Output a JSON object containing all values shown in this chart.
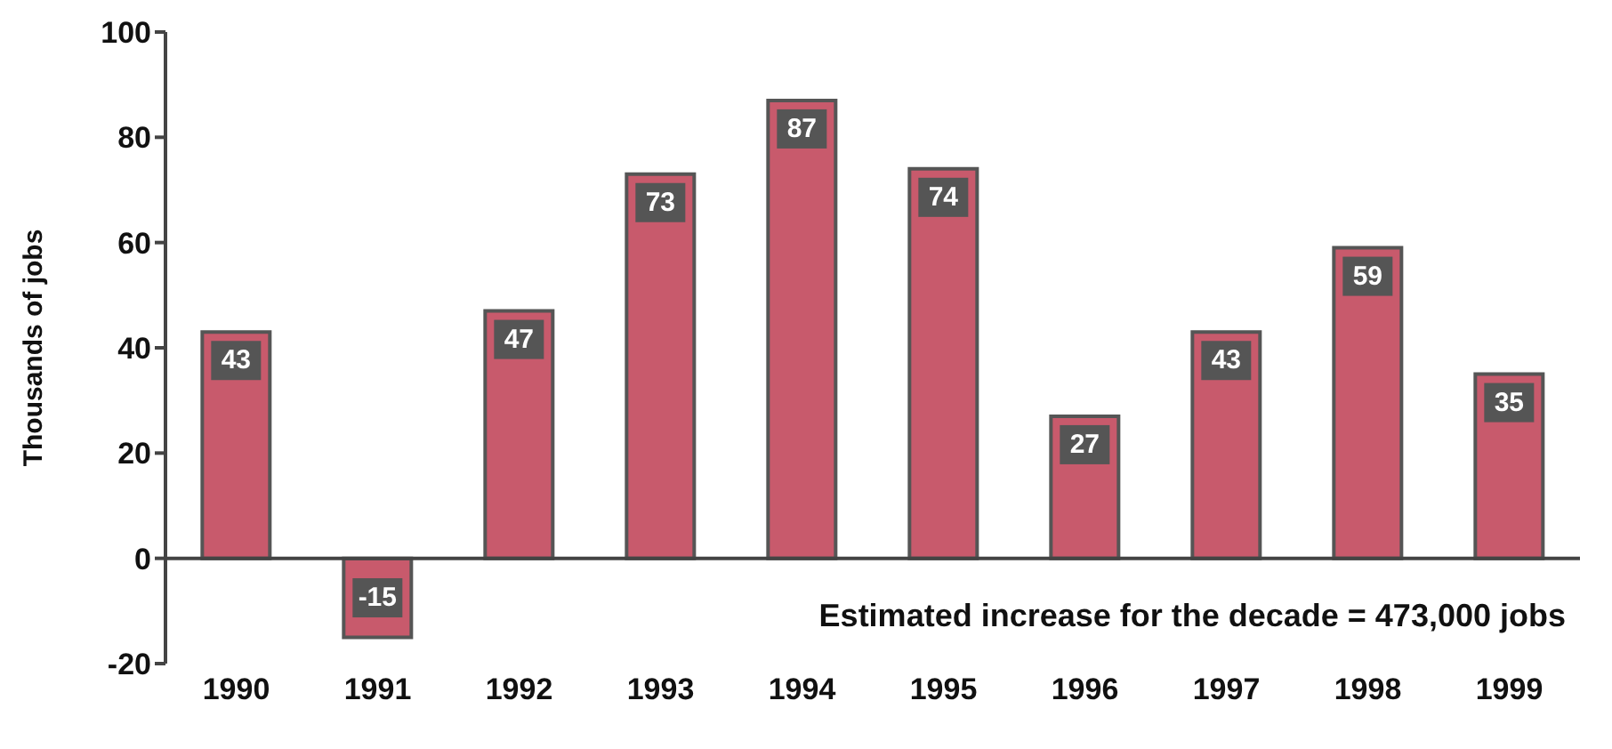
{
  "chart_data": {
    "type": "bar",
    "ylabel": "Thousands of jobs",
    "categories": [
      "1990",
      "1991",
      "1992",
      "1993",
      "1994",
      "1995",
      "1996",
      "1997",
      "1998",
      "1999"
    ],
    "values": [
      43,
      -15,
      47,
      73,
      87,
      74,
      27,
      43,
      59,
      35
    ],
    "color": "#c85a6c",
    "ylim": [
      -20,
      100
    ],
    "yticks": [
      -20,
      0,
      20,
      40,
      60,
      80,
      100
    ],
    "data_labels": true,
    "annotations": [
      "Estimated increase for the decade = 473,000 jobs"
    ]
  }
}
